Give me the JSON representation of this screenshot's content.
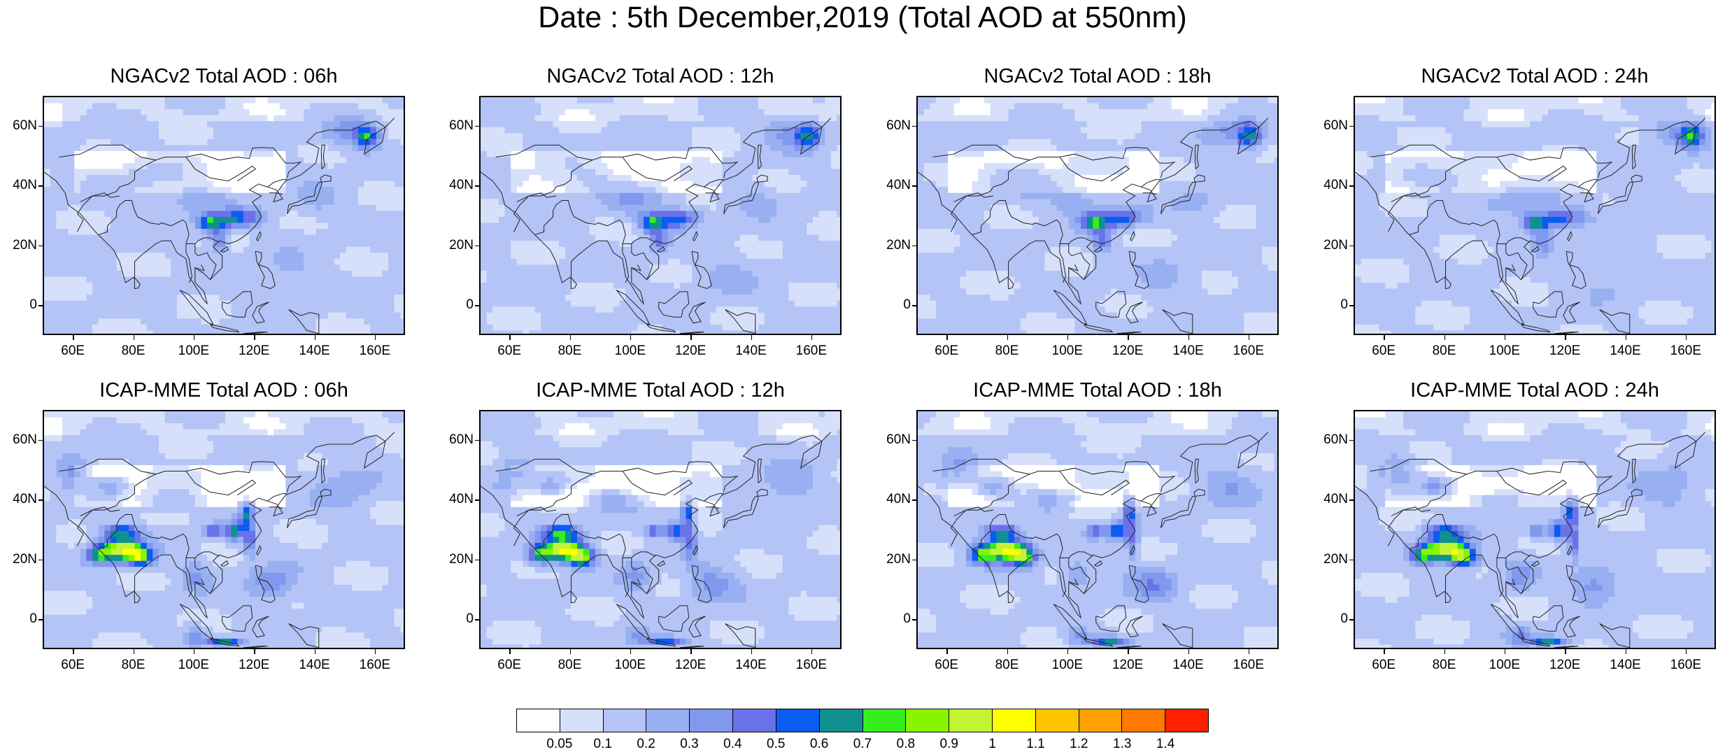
{
  "title": "Date : 5th December,2019 (Total AOD at 550nm)",
  "panels": [
    {
      "title": "NGACv2 Total AOD : 06h",
      "model": "ngac",
      "hour": "06h"
    },
    {
      "title": "NGACv2 Total AOD : 12h",
      "model": "ngac",
      "hour": "12h"
    },
    {
      "title": "NGACv2 Total AOD : 18h",
      "model": "ngac",
      "hour": "18h"
    },
    {
      "title": "NGACv2 Total AOD : 24h",
      "model": "ngac",
      "hour": "24h"
    },
    {
      "title": "ICAP-MME Total AOD : 06h",
      "model": "icap",
      "hour": "06h"
    },
    {
      "title": "ICAP-MME Total AOD : 12h",
      "model": "icap",
      "hour": "12h"
    },
    {
      "title": "ICAP-MME Total AOD : 18h",
      "model": "icap",
      "hour": "18h"
    },
    {
      "title": "ICAP-MME Total AOD : 24h",
      "model": "icap",
      "hour": "24h"
    }
  ],
  "axes": {
    "lat_labels": [
      "60N",
      "40N",
      "20N",
      "0"
    ],
    "lat_values": [
      60,
      40,
      20,
      0
    ],
    "lon_labels": [
      "60E",
      "80E",
      "100E",
      "120E",
      "140E",
      "160E"
    ],
    "lon_values": [
      60,
      80,
      100,
      120,
      140,
      160
    ],
    "lon_range": [
      50,
      170
    ],
    "lat_range": [
      -10,
      70
    ]
  },
  "colorbar": {
    "labels": [
      "0.05",
      "0.1",
      "0.2",
      "0.3",
      "0.4",
      "0.5",
      "0.6",
      "0.7",
      "0.8",
      "0.9",
      "1",
      "1.1",
      "1.2",
      "1.3",
      "1.4"
    ],
    "colors": [
      "#ffffff",
      "#d6e0fa",
      "#b4c4f6",
      "#98b0f2",
      "#8098ee",
      "#6a72ea",
      "#0a5cf2",
      "#109090",
      "#36ee1e",
      "#88f400",
      "#c2f436",
      "#ffff00",
      "#ffc400",
      "#ffa000",
      "#ff7800",
      "#ff2000"
    ]
  }
}
